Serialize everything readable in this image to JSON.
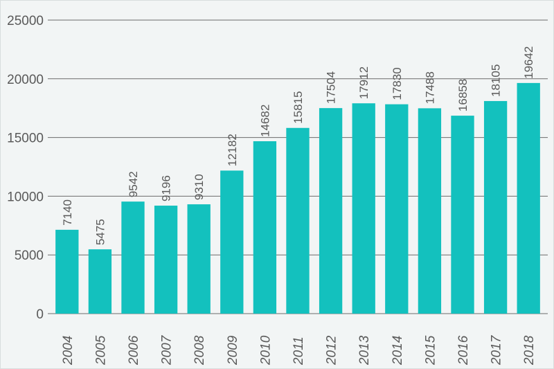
{
  "chart_data": {
    "type": "bar",
    "title": "",
    "xlabel": "",
    "ylabel": "",
    "categories": [
      "2004",
      "2005",
      "2006",
      "2007",
      "2008",
      "2009",
      "2010",
      "2011",
      "2012",
      "2013",
      "2014",
      "2015",
      "2016",
      "2017",
      "2018"
    ],
    "values": [
      7140,
      5475,
      9542,
      9196,
      9310,
      12182,
      14682,
      15815,
      17504,
      17912,
      17830,
      17488,
      16858,
      18105,
      19642
    ],
    "ylim": [
      0,
      25000
    ],
    "yticks": [
      0,
      5000,
      10000,
      15000,
      20000,
      25000
    ],
    "grid": true,
    "legend": "none",
    "bar_color": "#13c1be",
    "x_tick_rotation": "vertical-italic",
    "data_labels": "rotated-above-bars"
  }
}
